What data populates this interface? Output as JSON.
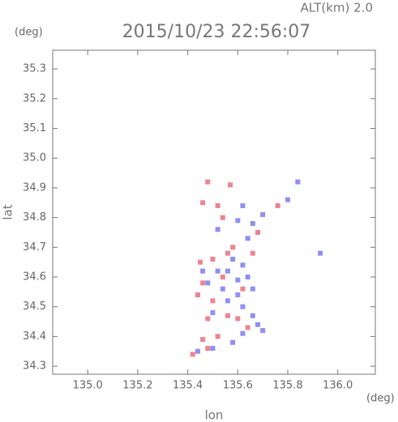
{
  "chart_data": {
    "type": "scatter",
    "title": "2015/10/23 22:56:07",
    "subtitle": "ALT(km) 2.0",
    "y_unit": "(deg)",
    "x_unit": "(deg)",
    "x_label": "lon",
    "y_label": "lat",
    "xlim": [
      134.86,
      136.15
    ],
    "ylim": [
      34.273,
      35.363
    ],
    "xticks": [
      {
        "value": 135.0,
        "label": "135.0"
      },
      135.2,
      135.4,
      135.6,
      135.8,
      {
        "value": 136.0,
        "label": "136.0"
      }
    ],
    "yticks": [
      34.3,
      34.4,
      34.5,
      34.6,
      34.7,
      34.8,
      34.9,
      {
        "value": 35.0,
        "label": "35.0"
      },
      35.1,
      35.2,
      35.3
    ],
    "series": [
      {
        "color": "#7b7bf2",
        "x": [
          135.93,
          135.8,
          135.84,
          135.62,
          135.7,
          135.66,
          135.58,
          135.62,
          135.56,
          135.6,
          135.64,
          135.66,
          135.6,
          135.56,
          135.62,
          135.66,
          135.68,
          135.7,
          135.62,
          135.58,
          135.5,
          135.44,
          135.52,
          135.48,
          135.54,
          135.5,
          135.52,
          135.6,
          135.64,
          135.46
        ],
        "values": [
          34.68,
          34.86,
          34.92,
          34.84,
          34.81,
          34.78,
          34.66,
          34.64,
          34.62,
          34.59,
          34.6,
          34.56,
          34.54,
          34.52,
          34.5,
          34.47,
          34.44,
          34.42,
          34.41,
          34.38,
          34.36,
          34.35,
          34.62,
          34.58,
          34.56,
          34.48,
          34.76,
          34.79,
          34.73,
          34.62
        ]
      },
      {
        "color": "#ea6f7c",
        "x": [
          135.48,
          135.57,
          135.46,
          135.52,
          135.76,
          135.45,
          135.5,
          135.58,
          135.54,
          135.46,
          135.5,
          135.48,
          135.56,
          135.6,
          135.46,
          135.52,
          135.64,
          135.42,
          135.48,
          135.56,
          135.62,
          135.44,
          135.66,
          135.68,
          135.54
        ],
        "values": [
          34.92,
          34.91,
          34.85,
          34.84,
          34.84,
          34.65,
          34.66,
          34.7,
          34.6,
          34.58,
          34.52,
          34.46,
          34.47,
          34.46,
          34.39,
          34.4,
          34.43,
          34.34,
          34.36,
          34.68,
          34.56,
          34.54,
          34.68,
          34.75,
          34.8
        ]
      }
    ]
  }
}
